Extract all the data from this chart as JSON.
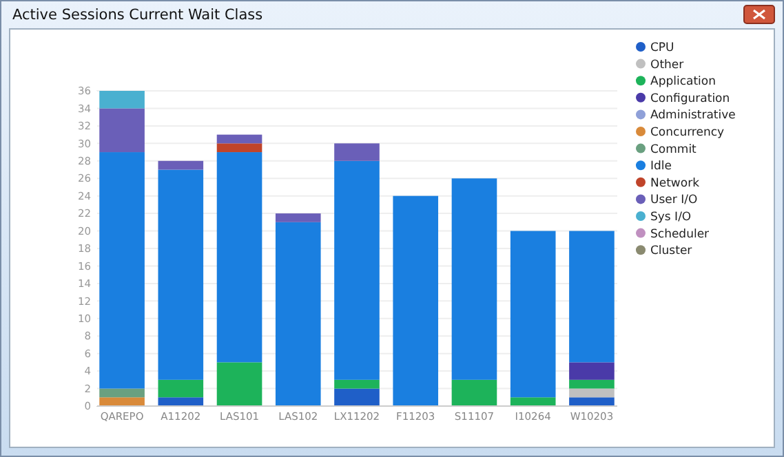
{
  "chart_data": {
    "type": "bar",
    "title": "Active Sessions Current Wait Class",
    "stacked": true,
    "categories": [
      "QAREPO",
      "A11202",
      "LAS101",
      "LAS102",
      "LX11202",
      "F11203",
      "S11107",
      "I10264",
      "W10203"
    ],
    "series": [
      {
        "name": "CPU",
        "color": "#1f5fc8",
        "values": [
          0,
          1,
          0,
          0,
          2,
          0,
          0,
          0,
          1
        ]
      },
      {
        "name": "Other",
        "color": "#c0c0c0",
        "values": [
          0,
          0,
          0,
          0,
          0,
          0,
          0,
          0,
          1
        ]
      },
      {
        "name": "Application",
        "color": "#1db35a",
        "values": [
          0,
          2,
          5,
          0,
          1,
          0,
          3,
          1,
          1
        ]
      },
      {
        "name": "Configuration",
        "color": "#4a3aa8",
        "values": [
          0,
          0,
          0,
          0,
          0,
          0,
          0,
          0,
          2
        ]
      },
      {
        "name": "Administrative",
        "color": "#8fa0d8",
        "values": [
          0,
          0,
          0,
          0,
          0,
          0,
          0,
          0,
          0
        ]
      },
      {
        "name": "Concurrency",
        "color": "#d98a3a",
        "values": [
          1,
          0,
          0,
          0,
          0,
          0,
          0,
          0,
          0
        ]
      },
      {
        "name": "Commit",
        "color": "#6aa080",
        "values": [
          1,
          0,
          0,
          0,
          0,
          0,
          0,
          0,
          0
        ]
      },
      {
        "name": "Idle",
        "color": "#1a7fe0",
        "values": [
          27,
          24,
          24,
          21,
          25,
          24,
          23,
          19,
          15
        ]
      },
      {
        "name": "Network",
        "color": "#c0442a",
        "values": [
          0,
          0,
          1,
          0,
          0,
          0,
          0,
          0,
          0
        ]
      },
      {
        "name": "User I/O",
        "color": "#6a5fb8",
        "values": [
          5,
          1,
          1,
          1,
          2,
          0,
          0,
          0,
          0
        ]
      },
      {
        "name": "Sys I/O",
        "color": "#4ab0d0",
        "values": [
          2,
          0,
          0,
          0,
          0,
          0,
          0,
          0,
          0
        ]
      },
      {
        "name": "Scheduler",
        "color": "#c090c0",
        "values": [
          0,
          0,
          0,
          0,
          0,
          0,
          0,
          0,
          0
        ]
      },
      {
        "name": "Cluster",
        "color": "#8a8a70",
        "values": [
          0,
          0,
          0,
          0,
          0,
          0,
          0,
          0,
          0
        ]
      }
    ],
    "ylim": [
      0,
      36
    ],
    "yticks": [
      0,
      2,
      4,
      6,
      8,
      10,
      12,
      14,
      16,
      18,
      20,
      22,
      24,
      26,
      28,
      30,
      32,
      34,
      36
    ],
    "grid": "y",
    "legend": "right"
  }
}
